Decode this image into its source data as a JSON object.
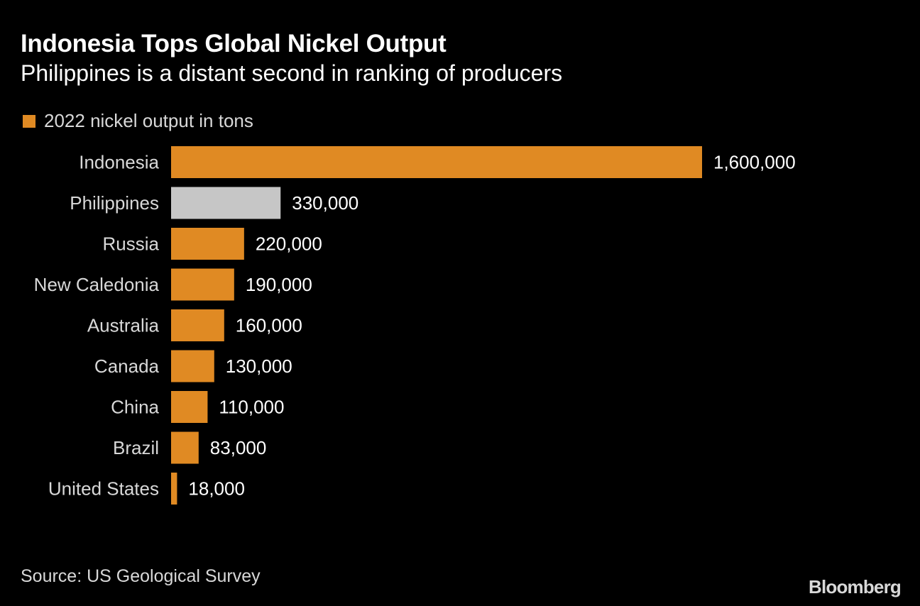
{
  "title": "Indonesia Tops Global Nickel Output",
  "subtitle": "Philippines is a distant second in ranking of producers",
  "legend": {
    "label": "2022 nickel output in tons",
    "color": "#e08a23"
  },
  "source": "Source: US Geological Survey",
  "brand": "Bloomberg",
  "colors": {
    "bar": "#e08a23",
    "highlight": "#c6c6c6",
    "background": "#000000"
  },
  "chart_data": {
    "type": "bar",
    "orientation": "horizontal",
    "title": "Indonesia Tops Global Nickel Output",
    "subtitle": "Philippines is a distant second in ranking of producers",
    "categories": [
      "Indonesia",
      "Philippines",
      "Russia",
      "New Caledonia",
      "Australia",
      "Canada",
      "China",
      "Brazil",
      "United States"
    ],
    "series": [
      {
        "name": "2022 nickel output in tons",
        "values": [
          1600000,
          330000,
          220000,
          190000,
          160000,
          130000,
          110000,
          83000,
          18000
        ]
      }
    ],
    "value_labels": [
      "1,600,000",
      "330,000",
      "220,000",
      "190,000",
      "160,000",
      "130,000",
      "110,000",
      "83,000",
      "18,000"
    ],
    "highlight": "Philippines",
    "xlim": [
      0,
      1600000
    ],
    "grid": false,
    "legend_position": "top-left"
  }
}
